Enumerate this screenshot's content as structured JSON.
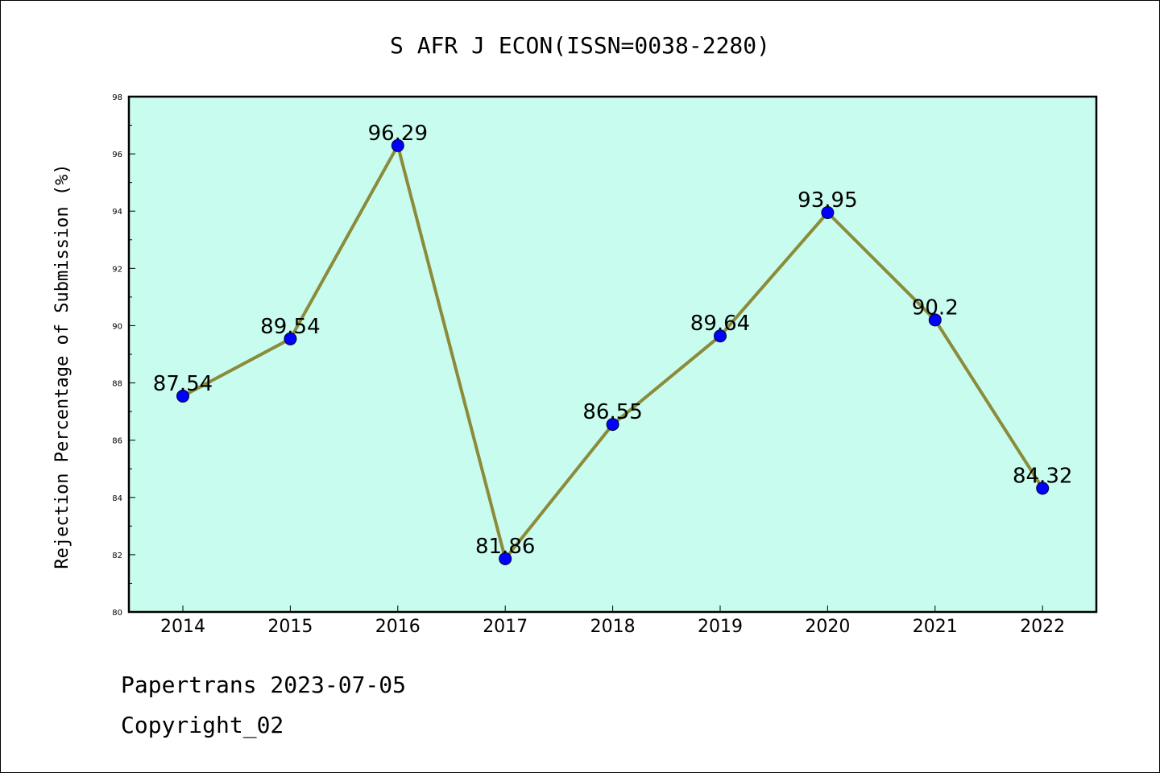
{
  "chart_data": {
    "type": "line",
    "title": "S AFR J ECON(ISSN=0038-2280)",
    "xlabel": "",
    "ylabel": "Rejection Percentage of Submission (%)",
    "categories": [
      "2014",
      "2015",
      "2016",
      "2017",
      "2018",
      "2019",
      "2020",
      "2021",
      "2022"
    ],
    "series": [
      {
        "values": [
          87.54,
          89.54,
          96.29,
          81.86,
          86.55,
          89.64,
          93.95,
          90.2,
          84.32
        ],
        "labels": [
          "87.54",
          "89.54",
          "96.29",
          "81.86",
          "86.55",
          "89.64",
          "93.95",
          "90.2",
          "84.32"
        ]
      }
    ],
    "ylim": [
      80,
      98
    ],
    "yticks": [
      "80",
      "82",
      "84",
      "86",
      "88",
      "90",
      "92",
      "94",
      "96",
      "98"
    ],
    "grid": false,
    "legend": "none",
    "colors": {
      "plot_background": "#c8fcee",
      "line": "#8b8b3a",
      "marker": "#0000ff"
    }
  },
  "footer": {
    "line1": "Papertrans 2023-07-05",
    "line2": "Copyright_02"
  }
}
